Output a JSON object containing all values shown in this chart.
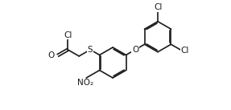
{
  "background_color": "#ffffff",
  "line_color": "#1a1a1a",
  "line_width": 1.2,
  "font_size": 7.0,
  "xlim": [
    -2.0,
    13.5
  ],
  "ylim": [
    0.5,
    10.5
  ],
  "figsize": [
    2.87,
    1.37
  ],
  "dpi": 100
}
